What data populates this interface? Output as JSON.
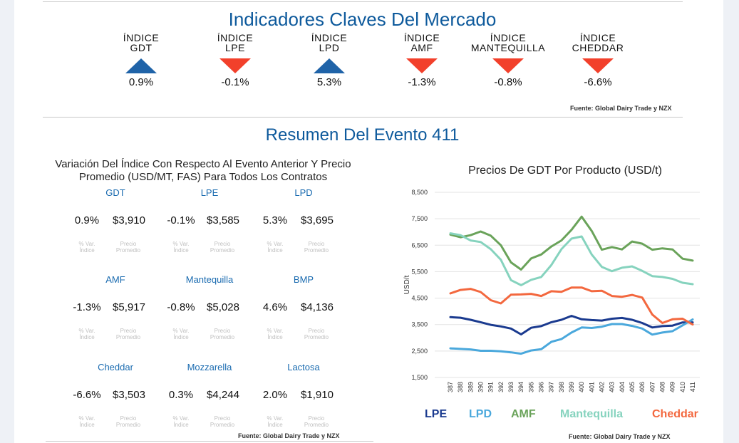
{
  "indicators": {
    "title": "Indicadores Claves Del Mercado",
    "items": [
      {
        "name": "ÍNDICE\nGDT",
        "direction": "up",
        "value": "0.9%"
      },
      {
        "name": "ÍNDICE\nLPE",
        "direction": "down",
        "value": "-0.1%"
      },
      {
        "name": "ÍNDICE\nLPD",
        "direction": "up",
        "value": "5.3%"
      },
      {
        "name": "ÍNDICE\nAMF",
        "direction": "down",
        "value": "-1.3%"
      },
      {
        "name": "ÍNDICE\nMANTEQUILLA",
        "direction": "down",
        "value": "-0.8%"
      },
      {
        "name": "ÍNDICE\nCHEDDAR",
        "direction": "down",
        "value": "-6.6%"
      }
    ],
    "source": "Fuente: Global Dairy Trade y NZX",
    "colors": {
      "up": "#1f63a8",
      "down": "#f2402b"
    }
  },
  "summary": {
    "title": "Resumen Del Evento 411",
    "subtitle_line1": "Variación Del Índice Con Respecto Al Evento Anterior Y Precio",
    "subtitle_line2": "Promedio (USD/MT, FAS) Para Todos Los Contratos",
    "var_caption": "% Var.\nÍndice",
    "price_caption": "Precio\nPromedio",
    "products": [
      {
        "name": "GDT",
        "var": "0.9%",
        "price": "$3,910"
      },
      {
        "name": "LPE",
        "var": "-0.1%",
        "price": "$3,585"
      },
      {
        "name": "LPD",
        "var": "5.3%",
        "price": "$3,695"
      },
      {
        "name": "AMF",
        "var": "-1.3%",
        "price": "$5,917"
      },
      {
        "name": "Mantequilla",
        "var": "-0.8%",
        "price": "$5,028"
      },
      {
        "name": "BMP",
        "var": "4.6%",
        "price": "$4,136"
      },
      {
        "name": "Cheddar",
        "var": "-6.6%",
        "price": "$3,503"
      },
      {
        "name": "Mozzarella",
        "var": "0.3%",
        "price": "$4,244"
      },
      {
        "name": "Lactosa",
        "var": "2.0%",
        "price": "$1,910"
      }
    ],
    "source": "Fuente:  Global Dairy Trade y NZX"
  },
  "chart_data": {
    "type": "line",
    "title": "Precios De GDT Por Producto (USD/t)",
    "ylabel": "USD/t",
    "ylim": [
      1500,
      8500
    ],
    "yticks": [
      "1,500",
      "2,500",
      "3,500",
      "4,500",
      "5,500",
      "6,500",
      "7,500",
      "8,500"
    ],
    "ytick_values": [
      1500,
      2500,
      3500,
      4500,
      5500,
      6500,
      7500,
      8500
    ],
    "grid": true,
    "legend": "bottom",
    "x": [
      "387",
      "388",
      "389",
      "390",
      "391",
      "392",
      "393",
      "394",
      "395",
      "396",
      "397",
      "398",
      "399",
      "400",
      "401",
      "402",
      "403",
      "404",
      "405",
      "406",
      "407",
      "408",
      "409",
      "410",
      "411"
    ],
    "series": [
      {
        "name": "LPE",
        "color": "#1a3a8f",
        "values": [
          3780,
          3760,
          3680,
          3590,
          3490,
          3430,
          3350,
          3130,
          3380,
          3440,
          3590,
          3680,
          3830,
          3700,
          3670,
          3650,
          3720,
          3750,
          3680,
          3560,
          3390,
          3440,
          3460,
          3580,
          3585
        ]
      },
      {
        "name": "LPD",
        "color": "#4aa8dc",
        "values": [
          2600,
          2580,
          2560,
          2510,
          2510,
          2490,
          2450,
          2400,
          2520,
          2570,
          2850,
          2950,
          3200,
          3390,
          3370,
          3420,
          3520,
          3520,
          3450,
          3350,
          3120,
          3200,
          3250,
          3470,
          3695
        ]
      },
      {
        "name": "AMF",
        "color": "#6aa35a",
        "values": [
          6900,
          6800,
          6880,
          7020,
          6860,
          6500,
          5850,
          5580,
          6000,
          6150,
          6450,
          6680,
          7080,
          7580,
          7040,
          6330,
          6430,
          6340,
          6640,
          6560,
          6330,
          6380,
          6340,
          5990,
          5917
        ]
      },
      {
        "name": "Mantequilla",
        "color": "#86d3be",
        "values": [
          6950,
          6880,
          6680,
          6620,
          6350,
          5950,
          5180,
          4990,
          5190,
          5300,
          5750,
          6350,
          6750,
          6830,
          6150,
          5680,
          5520,
          5650,
          5700,
          5530,
          5330,
          5300,
          5230,
          5080,
          5028
        ]
      },
      {
        "name": "Cheddar",
        "color": "#f3683f",
        "values": [
          4680,
          4810,
          4850,
          4730,
          4420,
          4300,
          4630,
          4640,
          4660,
          4580,
          4760,
          4740,
          4900,
          4900,
          4760,
          4780,
          4580,
          4550,
          4620,
          4520,
          3880,
          3560,
          3700,
          3720,
          3503
        ]
      }
    ],
    "source": "Fuente:  Global Dairy Trade y NZX"
  }
}
